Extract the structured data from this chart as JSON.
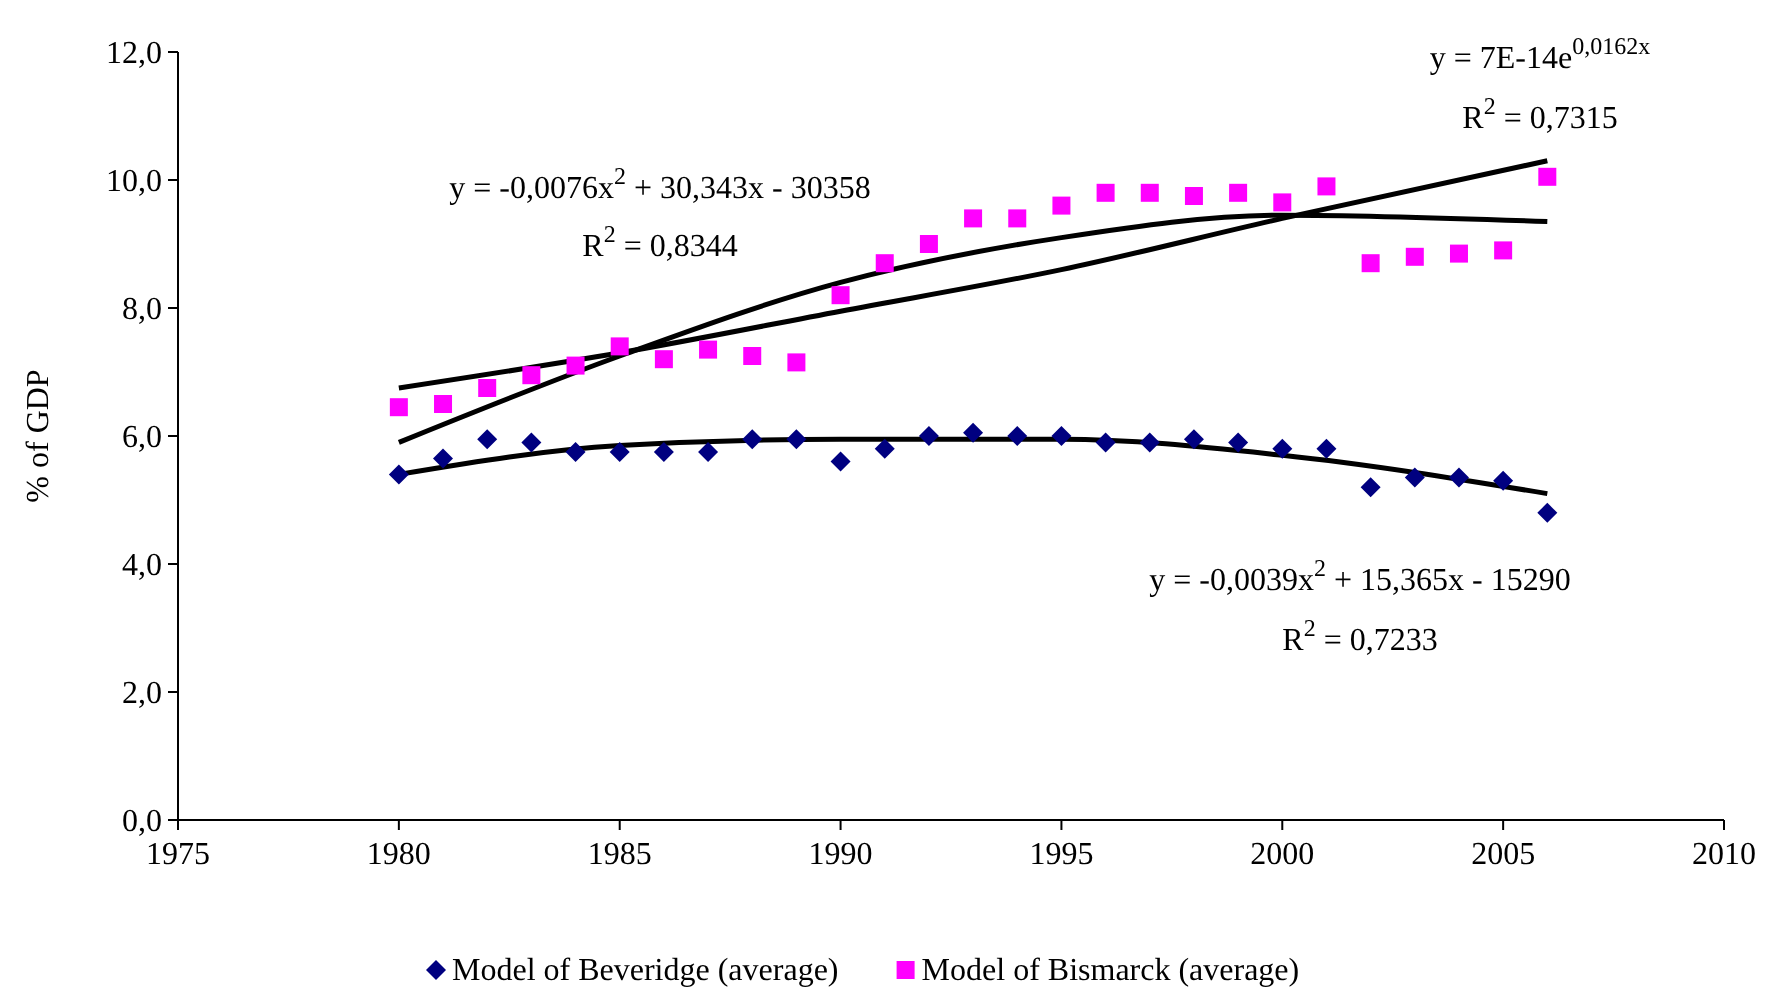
{
  "chart_data": {
    "type": "scatter",
    "ylabel": "% of GDP",
    "xlim": [
      1975,
      2010
    ],
    "xticks": [
      1975,
      1980,
      1985,
      1990,
      1995,
      2000,
      2005,
      2010
    ],
    "ylim": [
      0,
      12
    ],
    "yticks": [
      {
        "value": 0,
        "label": "0,0"
      },
      {
        "value": 2,
        "label": "2,0"
      },
      {
        "value": 4,
        "label": "4,0"
      },
      {
        "value": 6,
        "label": "6,0"
      },
      {
        "value": 8,
        "label": "8,0"
      },
      {
        "value": 10,
        "label": "10,0"
      },
      {
        "value": 12,
        "label": "12,0"
      }
    ],
    "grid": false,
    "legend": "bottom",
    "x": [
      1980,
      1981,
      1982,
      1983,
      1984,
      1985,
      1986,
      1987,
      1988,
      1989,
      1990,
      1991,
      1992,
      1993,
      1994,
      1995,
      1996,
      1997,
      1998,
      1999,
      2000,
      2001,
      2002,
      2003,
      2004,
      2005,
      2006
    ],
    "series": [
      {
        "name": "Model of Beveridge (average)",
        "color": "#000080",
        "marker": "diamond",
        "values": [
          5.4,
          5.65,
          5.95,
          5.9,
          5.75,
          5.75,
          5.75,
          5.75,
          5.95,
          5.95,
          5.6,
          5.8,
          6.0,
          6.05,
          6.0,
          6.0,
          5.9,
          5.9,
          5.95,
          5.9,
          5.8,
          5.8,
          5.2,
          5.35,
          5.35,
          5.3,
          4.8
        ]
      },
      {
        "name": "Model of Bismarck (average)",
        "color": "#ff00ff",
        "marker": "square",
        "values": [
          6.45,
          6.5,
          6.75,
          6.95,
          7.1,
          7.4,
          7.2,
          7.35,
          7.25,
          7.15,
          8.2,
          8.7,
          9.0,
          9.4,
          9.4,
          9.6,
          9.8,
          9.8,
          9.75,
          9.8,
          9.65,
          9.9,
          8.7,
          8.8,
          8.85,
          8.9,
          10.05
        ]
      },
      {
        "type": "line",
        "color": "#000000",
        "marker": "none",
        "x": [
          1980,
          1985,
          1990,
          1995,
          2000,
          2006
        ],
        "values": [
          5.4,
          5.85,
          5.95,
          5.95,
          5.7,
          5.1
        ]
      },
      {
        "type": "line",
        "color": "#000000",
        "marker": "none",
        "x": [
          1980,
          1985,
          1990,
          1995,
          2000,
          2006
        ],
        "values": [
          5.9,
          7.25,
          8.4,
          9.1,
          9.45,
          9.35
        ]
      },
      {
        "type": "line",
        "color": "#000000",
        "marker": "none",
        "x": [
          1980,
          1985,
          1990,
          1995,
          2000,
          2006
        ],
        "values": [
          6.75,
          7.3,
          7.95,
          8.6,
          9.4,
          10.3
        ]
      }
    ],
    "annotations": [
      "y = -0,0076x$^{2}$ + 30,343x - 30358",
      "R$^{2}$ = 0,8344",
      "y = 7E-14e$^{0,0162x}$",
      "R$^{2}$ = 0,7315",
      "y = -0,0039x$^{2}$ + 15,365x - 15290",
      "R$^{2}$ = 0,7233"
    ]
  }
}
